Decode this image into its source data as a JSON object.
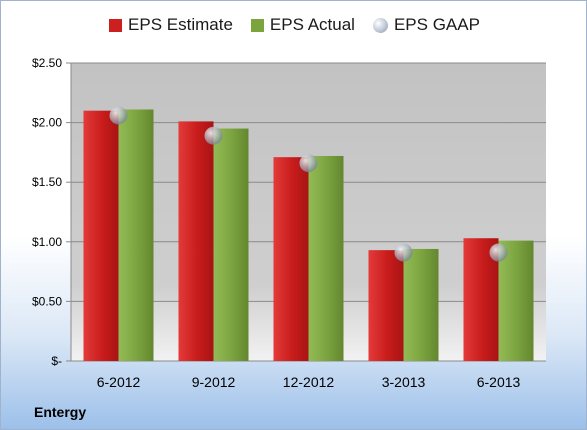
{
  "legend": {
    "estimate": "EPS Estimate",
    "actual": "EPS Actual",
    "gaap": "EPS GAAP"
  },
  "footer": {
    "company": "Entergy"
  },
  "colors": {
    "estimate": "#cc1f1f",
    "actual": "#7ba43f",
    "gaap": "#b8c2ce",
    "plot_bg": "#c6c6c6"
  },
  "chart_data": {
    "type": "bar",
    "categories": [
      "6-2012",
      "9-2012",
      "12-2012",
      "3-2013",
      "6-2013"
    ],
    "series": [
      {
        "name": "EPS Estimate",
        "values": [
          2.1,
          2.01,
          1.71,
          0.93,
          1.03
        ]
      },
      {
        "name": "EPS Actual",
        "values": [
          2.11,
          1.95,
          1.72,
          0.94,
          1.01
        ]
      },
      {
        "name": "EPS GAAP",
        "values": [
          2.06,
          1.89,
          1.66,
          0.91,
          0.91
        ],
        "style": "marker"
      }
    ],
    "yticks": [
      "$-",
      "$0.50",
      "$1.00",
      "$1.50",
      "$2.00",
      "$2.50"
    ],
    "ylim": [
      0,
      2.5
    ],
    "grid": true,
    "legend_position": "top"
  }
}
